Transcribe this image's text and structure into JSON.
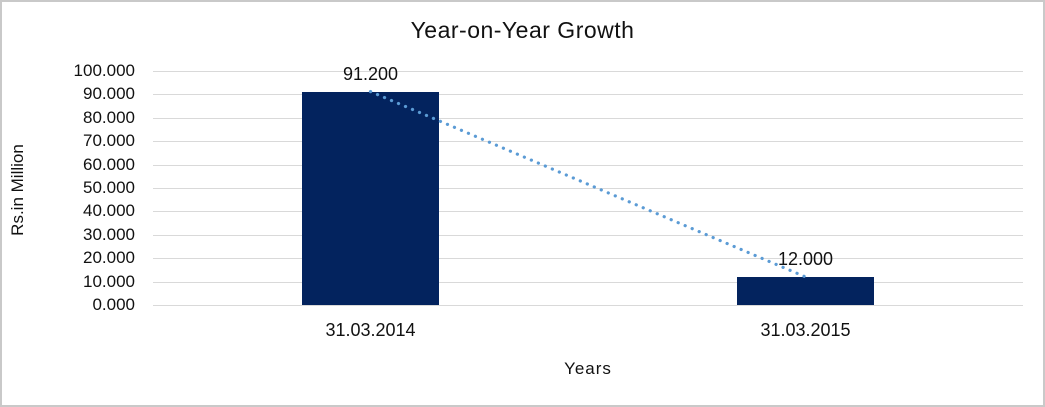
{
  "chart_data": {
    "type": "bar",
    "title": "Year-on-Year Growth",
    "xlabel": "Years",
    "ylabel": "Rs.in Million",
    "categories": [
      "31.03.2014",
      "31.03.2015"
    ],
    "values": [
      91.2,
      12.0
    ],
    "data_labels": [
      "91.200",
      "12.000"
    ],
    "ylim": [
      0,
      100
    ],
    "ytick_step": 10,
    "ytick_labels": [
      "0.000",
      "10.000",
      "20.000",
      "30.000",
      "40.000",
      "50.000",
      "60.000",
      "70.000",
      "80.000",
      "90.000",
      "100.000"
    ],
    "grid": "horizontal",
    "legend": "none",
    "bar_color": "#03235e",
    "trendline": {
      "style": "dotted",
      "color": "#5b9bd5",
      "connects": [
        "31.03.2014",
        "31.03.2015"
      ]
    }
  },
  "colors": {
    "background": "#ffffff",
    "frame_border": "#c9c9c9",
    "gridline": "#d9d9d9",
    "text": "#111111"
  }
}
